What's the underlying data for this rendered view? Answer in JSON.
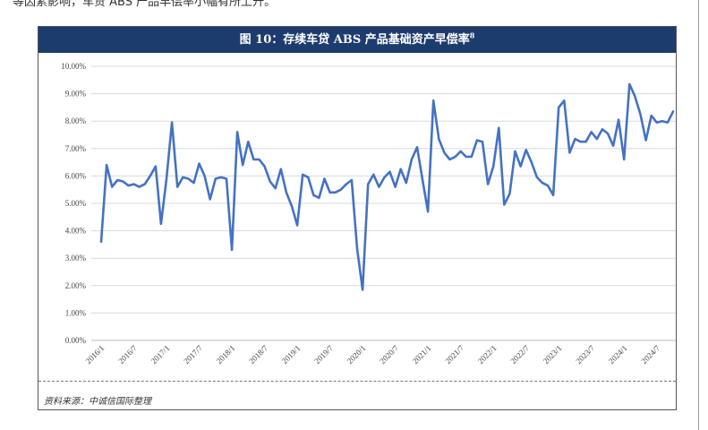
{
  "intro_text": "等因素影响，车贷 ABS 产品早偿率小幅有所上升。",
  "figure": {
    "title": "图 10：存续车贷 ABS 产品基础资产早偿率",
    "title_sup": "8",
    "source": "资料来源：中诚信国际整理"
  },
  "chart_data": {
    "type": "line",
    "x_tick_labels": [
      "2016/1",
      "2016/7",
      "2017/1",
      "2017/7",
      "2018/1",
      "2018/7",
      "2019/1",
      "2019/7",
      "2020/1",
      "2020/7",
      "2021/1",
      "2021/7",
      "2022/1",
      "2022/7",
      "2023/1",
      "2023/7",
      "2024/1",
      "2024/7"
    ],
    "y_tick_labels": [
      "0.00%",
      "1.00%",
      "2.00%",
      "3.00%",
      "4.00%",
      "5.00%",
      "6.00%",
      "7.00%",
      "8.00%",
      "9.00%",
      "10.00%"
    ],
    "ylim": [
      0,
      10
    ],
    "y_unit": "%",
    "grid": true,
    "line_color": "#4472c4",
    "x_start": "2016/1",
    "values": [
      3.6,
      6.4,
      5.6,
      5.85,
      5.8,
      5.65,
      5.7,
      5.6,
      5.7,
      6.0,
      6.35,
      4.25,
      5.9,
      7.95,
      5.6,
      5.95,
      5.9,
      5.75,
      6.45,
      6.0,
      5.15,
      5.9,
      5.95,
      5.9,
      3.3,
      7.6,
      6.4,
      7.25,
      6.6,
      6.6,
      6.35,
      5.8,
      5.55,
      6.25,
      5.4,
      4.9,
      4.2,
      6.05,
      5.95,
      5.3,
      5.2,
      5.9,
      5.4,
      5.4,
      5.5,
      5.7,
      5.85,
      3.35,
      1.85,
      5.7,
      6.05,
      5.6,
      5.95,
      6.15,
      5.6,
      6.25,
      5.75,
      6.6,
      7.05,
      5.85,
      4.7,
      8.75,
      7.35,
      6.85,
      6.6,
      6.7,
      6.9,
      6.7,
      6.7,
      7.3,
      7.25,
      5.7,
      6.35,
      7.75,
      4.95,
      5.35,
      6.9,
      6.35,
      6.95,
      6.5,
      5.95,
      5.75,
      5.65,
      5.3,
      8.5,
      8.75,
      6.85,
      7.35,
      7.25,
      7.25,
      7.6,
      7.35,
      7.7,
      7.55,
      7.1,
      8.05,
      6.6,
      9.35,
      8.9,
      8.25,
      7.3,
      8.2,
      7.95,
      8.0,
      7.95,
      8.35
    ]
  }
}
